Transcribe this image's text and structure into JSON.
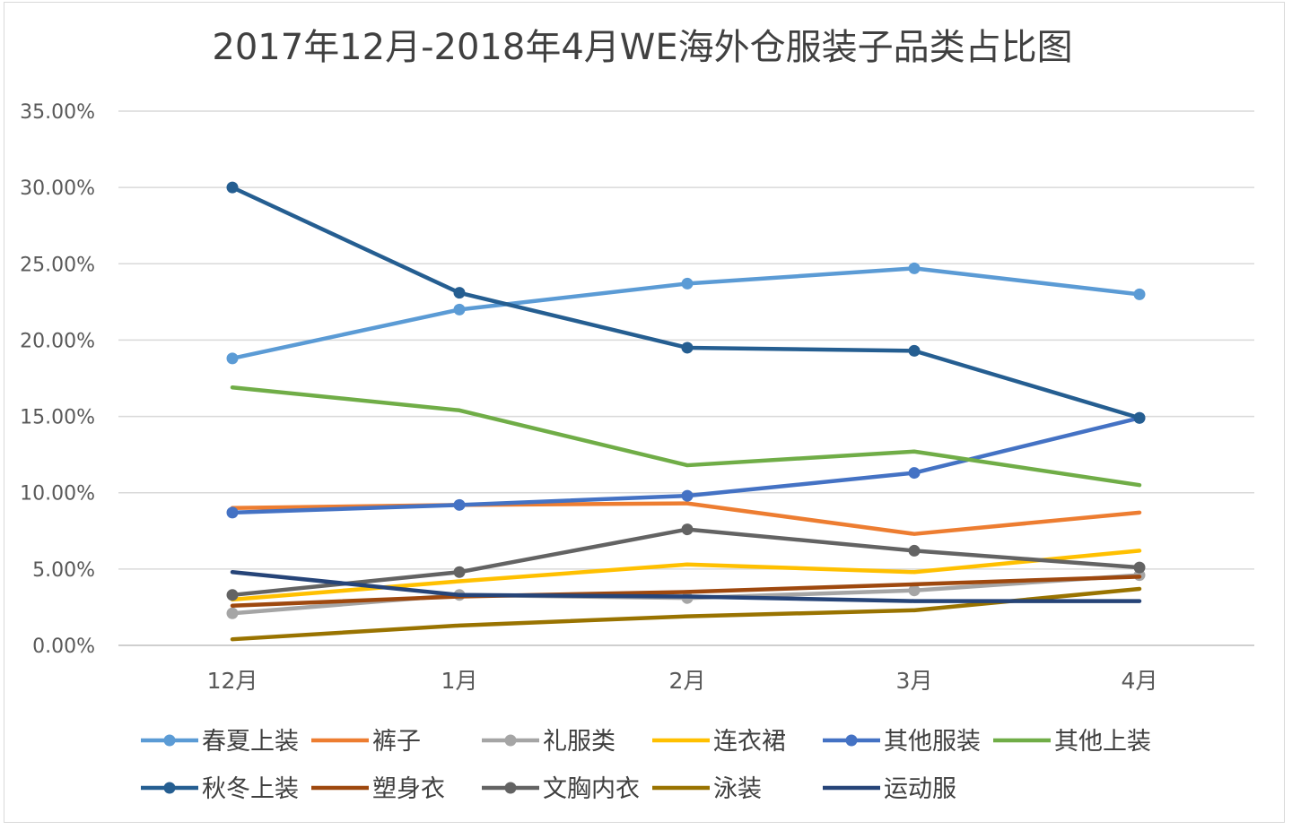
{
  "chart_data": {
    "type": "line",
    "title": "2017年12月-2018年4月WE海外仓服装子品类占比图",
    "xlabel": "",
    "ylabel": "",
    "categories": [
      "12月",
      "1月",
      "2月",
      "3月",
      "4月"
    ],
    "ylim": [
      0,
      0.35
    ],
    "yticks": [
      0,
      0.05,
      0.1,
      0.15,
      0.2,
      0.25,
      0.3,
      0.35
    ],
    "ytick_labels": [
      "0.00%",
      "5.00%",
      "10.00%",
      "15.00%",
      "20.00%",
      "25.00%",
      "30.00%",
      "35.00%"
    ],
    "grid": "horizontal",
    "legend_position": "bottom",
    "series": [
      {
        "name": "春夏上装",
        "color": "#5b9bd5",
        "markers": true,
        "values": [
          0.188,
          0.22,
          0.237,
          0.247,
          0.23
        ]
      },
      {
        "name": "裤子",
        "color": "#ed7d31",
        "markers": false,
        "values": [
          0.09,
          0.092,
          0.093,
          0.073,
          0.087
        ]
      },
      {
        "name": "礼服类",
        "color": "#a5a5a5",
        "markers": true,
        "values": [
          0.021,
          0.033,
          0.031,
          0.036,
          0.046
        ]
      },
      {
        "name": "连衣裙",
        "color": "#ffc000",
        "markers": false,
        "values": [
          0.03,
          0.042,
          0.053,
          0.048,
          0.062
        ]
      },
      {
        "name": "其他服装",
        "color": "#4472c4",
        "markers": true,
        "values": [
          0.087,
          0.092,
          0.098,
          0.113,
          0.149
        ]
      },
      {
        "name": "其他上装",
        "color": "#70ad47",
        "markers": false,
        "values": [
          0.169,
          0.154,
          0.118,
          0.127,
          0.105
        ]
      },
      {
        "name": "秋冬上装",
        "color": "#255e91",
        "markers": true,
        "values": [
          0.3,
          0.231,
          0.195,
          0.193,
          0.149
        ]
      },
      {
        "name": "塑身衣",
        "color": "#9e480e",
        "markers": false,
        "values": [
          0.026,
          0.032,
          0.035,
          0.04,
          0.045
        ]
      },
      {
        "name": "文胸内衣",
        "color": "#636363",
        "markers": true,
        "values": [
          0.033,
          0.048,
          0.076,
          0.062,
          0.051
        ]
      },
      {
        "name": "泳装",
        "color": "#997300",
        "markers": false,
        "values": [
          0.004,
          0.013,
          0.019,
          0.023,
          0.037
        ]
      },
      {
        "name": "运动服",
        "color": "#264478",
        "markers": false,
        "values": [
          0.048,
          0.033,
          0.032,
          0.029,
          0.029
        ]
      }
    ]
  }
}
